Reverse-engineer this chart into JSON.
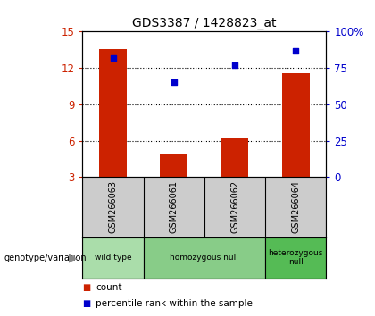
{
  "title": "GDS3387 / 1428823_at",
  "samples": [
    "GSM266063",
    "GSM266061",
    "GSM266062",
    "GSM266064"
  ],
  "bar_values": [
    13.55,
    4.85,
    6.2,
    11.55
  ],
  "percentile_pct": [
    82,
    65,
    77,
    87
  ],
  "bar_color": "#cc2200",
  "percentile_color": "#0000cc",
  "ylim_left": [
    3,
    15
  ],
  "ylim_right": [
    0,
    100
  ],
  "yticks_left": [
    3,
    6,
    9,
    12,
    15
  ],
  "ytick_labels_right": [
    "0",
    "25",
    "50",
    "75",
    "100%"
  ],
  "yticks_right_vals": [
    0,
    25,
    50,
    75,
    100
  ],
  "grid_values": [
    6,
    9,
    12
  ],
  "genotype_groups": [
    {
      "label": "wild type",
      "samples": [
        "GSM266063"
      ],
      "color": "#aaddaa"
    },
    {
      "label": "homozygous null",
      "samples": [
        "GSM266061",
        "GSM266062"
      ],
      "color": "#88cc88"
    },
    {
      "label": "heterozygous\nnull",
      "samples": [
        "GSM266064"
      ],
      "color": "#55bb55"
    }
  ],
  "left_axis_color": "#cc2200",
  "right_axis_color": "#0000cc",
  "background_color": "#ffffff",
  "label_panel_color": "#cccccc",
  "bar_width": 0.45,
  "bar_bottom": 3
}
